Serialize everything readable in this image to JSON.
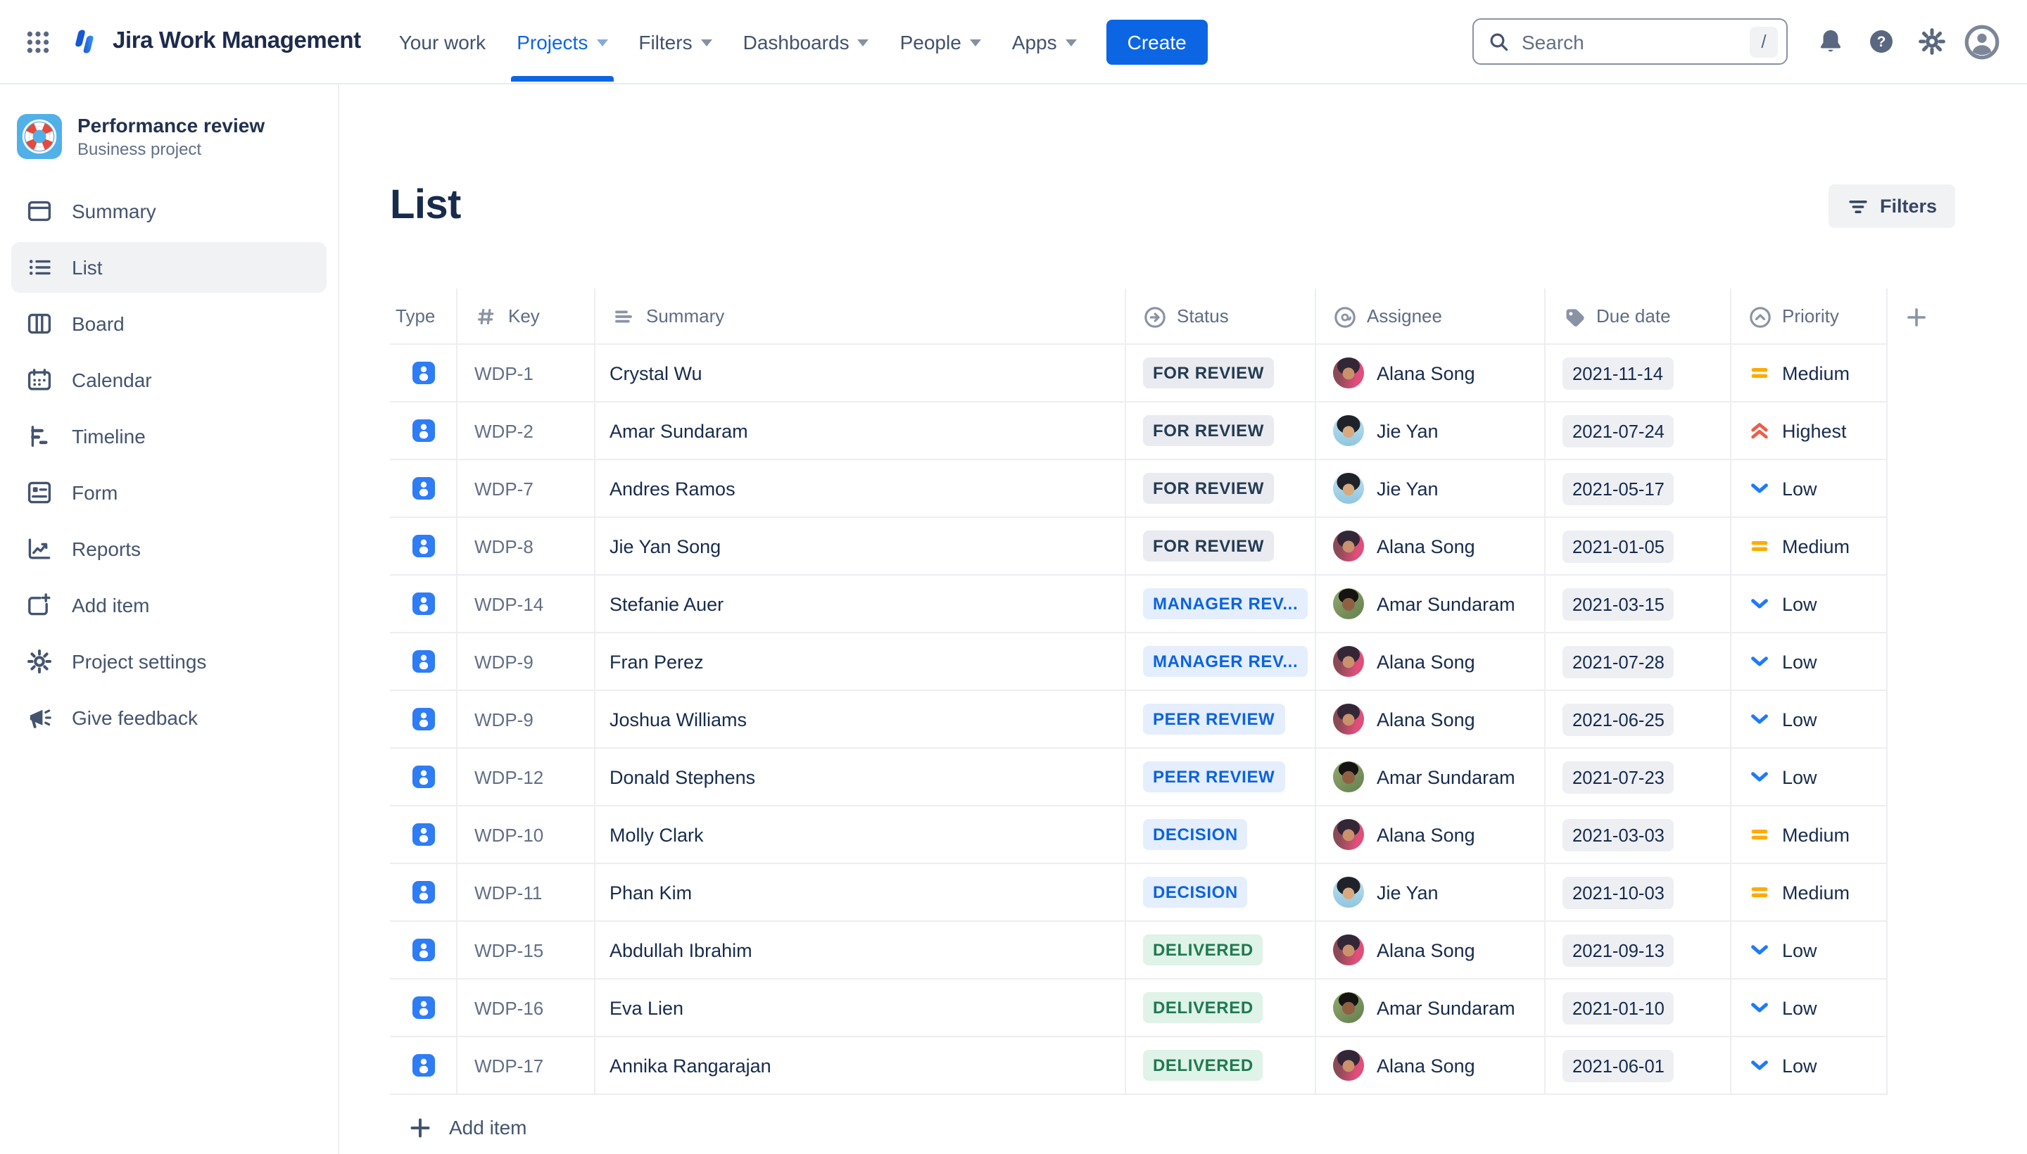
{
  "nav": {
    "logo_text": "Jira Work Management",
    "items": [
      {
        "label": "Your work",
        "caret": false,
        "active": false
      },
      {
        "label": "Projects",
        "caret": true,
        "active": true
      },
      {
        "label": "Filters",
        "caret": true,
        "active": false
      },
      {
        "label": "Dashboards",
        "caret": true,
        "active": false
      },
      {
        "label": "People",
        "caret": true,
        "active": false
      },
      {
        "label": "Apps",
        "caret": true,
        "active": false
      }
    ],
    "create_label": "Create",
    "search": {
      "placeholder": "Search",
      "shortcut": "/"
    }
  },
  "sidebar": {
    "project": {
      "name": "Performance review",
      "type": "Business project",
      "icon": "lifebuoy"
    },
    "items": [
      {
        "label": "Summary",
        "icon": "summary",
        "selected": false
      },
      {
        "label": "List",
        "icon": "list",
        "selected": true
      },
      {
        "label": "Board",
        "icon": "board",
        "selected": false
      },
      {
        "label": "Calendar",
        "icon": "calendar",
        "selected": false
      },
      {
        "label": "Timeline",
        "icon": "timeline",
        "selected": false
      },
      {
        "label": "Form",
        "icon": "form",
        "selected": false
      },
      {
        "label": "Reports",
        "icon": "reports",
        "selected": false
      },
      {
        "label": "Add item",
        "icon": "add-item",
        "selected": false
      },
      {
        "label": "Project settings",
        "icon": "settings",
        "selected": false
      },
      {
        "label": "Give feedback",
        "icon": "megaphone",
        "selected": false
      }
    ]
  },
  "page": {
    "title": "List",
    "filters_label": "Filters"
  },
  "table": {
    "columns": [
      {
        "label": "Type",
        "icon": null
      },
      {
        "label": "Key",
        "icon": "hash"
      },
      {
        "label": "Summary",
        "icon": "lines"
      },
      {
        "label": "Status",
        "icon": "arrow-circle"
      },
      {
        "label": "Assignee",
        "icon": "at"
      },
      {
        "label": "Due date",
        "icon": "tag"
      },
      {
        "label": "Priority",
        "icon": "chevron-circle"
      }
    ],
    "rows": [
      {
        "key": "WDP-1",
        "summary": "Crystal Wu",
        "status": {
          "label": "FOR REVIEW",
          "variant": "gray"
        },
        "assignee": {
          "name": "Alana Song",
          "avatar": "alana"
        },
        "due": "2021-11-14",
        "priority": {
          "label": "Medium",
          "level": "medium"
        }
      },
      {
        "key": "WDP-2",
        "summary": "Amar Sundaram",
        "status": {
          "label": "FOR REVIEW",
          "variant": "gray"
        },
        "assignee": {
          "name": "Jie Yan",
          "avatar": "jie"
        },
        "due": "2021-07-24",
        "priority": {
          "label": "Highest",
          "level": "highest"
        }
      },
      {
        "key": "WDP-7",
        "summary": "Andres Ramos",
        "status": {
          "label": "FOR REVIEW",
          "variant": "gray"
        },
        "assignee": {
          "name": "Jie Yan",
          "avatar": "jie"
        },
        "due": "2021-05-17",
        "priority": {
          "label": "Low",
          "level": "low"
        }
      },
      {
        "key": "WDP-8",
        "summary": "Jie Yan Song",
        "status": {
          "label": "FOR REVIEW",
          "variant": "gray"
        },
        "assignee": {
          "name": "Alana Song",
          "avatar": "alana"
        },
        "due": "2021-01-05",
        "priority": {
          "label": "Medium",
          "level": "medium"
        }
      },
      {
        "key": "WDP-14",
        "summary": "Stefanie Auer",
        "status": {
          "label": "MANAGER REV...",
          "variant": "blue"
        },
        "assignee": {
          "name": "Amar Sundaram",
          "avatar": "amar"
        },
        "due": "2021-03-15",
        "priority": {
          "label": "Low",
          "level": "low"
        }
      },
      {
        "key": "WDP-9",
        "summary": "Fran Perez",
        "status": {
          "label": "MANAGER REV...",
          "variant": "blue"
        },
        "assignee": {
          "name": "Alana Song",
          "avatar": "alana"
        },
        "due": "2021-07-28",
        "priority": {
          "label": "Low",
          "level": "low"
        }
      },
      {
        "key": "WDP-9",
        "summary": "Joshua Williams",
        "status": {
          "label": "PEER REVIEW",
          "variant": "blue"
        },
        "assignee": {
          "name": "Alana Song",
          "avatar": "alana"
        },
        "due": "2021-06-25",
        "priority": {
          "label": "Low",
          "level": "low"
        }
      },
      {
        "key": "WDP-12",
        "summary": "Donald Stephens",
        "status": {
          "label": "PEER REVIEW",
          "variant": "blue"
        },
        "assignee": {
          "name": "Amar Sundaram",
          "avatar": "amar"
        },
        "due": "2021-07-23",
        "priority": {
          "label": "Low",
          "level": "low"
        }
      },
      {
        "key": "WDP-10",
        "summary": "Molly Clark",
        "status": {
          "label": "DECISION",
          "variant": "blue"
        },
        "assignee": {
          "name": "Alana Song",
          "avatar": "alana"
        },
        "due": "2021-03-03",
        "priority": {
          "label": "Medium",
          "level": "medium"
        }
      },
      {
        "key": "WDP-11",
        "summary": "Phan Kim",
        "status": {
          "label": "DECISION",
          "variant": "blue"
        },
        "assignee": {
          "name": "Jie Yan",
          "avatar": "jie"
        },
        "due": "2021-10-03",
        "priority": {
          "label": "Medium",
          "level": "medium"
        }
      },
      {
        "key": "WDP-15",
        "summary": "Abdullah Ibrahim",
        "status": {
          "label": "DELIVERED",
          "variant": "green"
        },
        "assignee": {
          "name": "Alana Song",
          "avatar": "alana"
        },
        "due": "2021-09-13",
        "priority": {
          "label": "Low",
          "level": "low"
        }
      },
      {
        "key": "WDP-16",
        "summary": "Eva Lien",
        "status": {
          "label": "DELIVERED",
          "variant": "green"
        },
        "assignee": {
          "name": "Amar Sundaram",
          "avatar": "amar"
        },
        "due": "2021-01-10",
        "priority": {
          "label": "Low",
          "level": "low"
        }
      },
      {
        "key": "WDP-17",
        "summary": "Annika Rangarajan",
        "status": {
          "label": "DELIVERED",
          "variant": "green"
        },
        "assignee": {
          "name": "Alana Song",
          "avatar": "alana"
        },
        "due": "2021-06-01",
        "priority": {
          "label": "Low",
          "level": "low"
        }
      }
    ],
    "add_item_label": "Add item"
  },
  "colors": {
    "accent_blue": "#0C66E4",
    "navbar_active_underline": "#0C66E4",
    "status_gray_bg": "#E9EBF0",
    "status_gray_text": "#243B53",
    "status_blue_bg": "#E4EEFD",
    "status_blue_text": "#0C63DE",
    "status_green_bg": "#DFF3E8",
    "status_green_text": "#1F7A50",
    "date_chip_bg": "#EDEFF3",
    "priority_low": "#1D7AFC",
    "priority_medium": "#FFAB00",
    "priority_highest": "#EF5C48",
    "type_icon_bg": "#2E7CF6",
    "project_icon_bg": "#52B0E8",
    "project_icon_ring": "#E8483B"
  }
}
